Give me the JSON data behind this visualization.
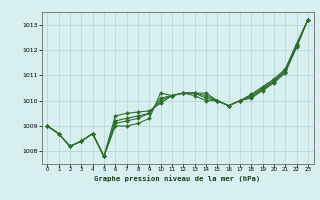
{
  "title": "Graphe pression niveau de la mer (hPa)",
  "bg_color": "#d8eff0",
  "grid_color": "#b0d4d4",
  "line_color": "#2d6e2d",
  "xlim": [
    -0.5,
    23.5
  ],
  "ylim": [
    1007.5,
    1013.5
  ],
  "yticks": [
    1008,
    1009,
    1010,
    1011,
    1012,
    1013
  ],
  "xticks": [
    0,
    1,
    2,
    3,
    4,
    5,
    6,
    7,
    8,
    9,
    10,
    11,
    12,
    13,
    14,
    15,
    16,
    17,
    18,
    19,
    20,
    21,
    22,
    23
  ],
  "series": [
    [
      1009.0,
      1008.7,
      1008.2,
      1008.4,
      1008.7,
      1007.8,
      1009.0,
      1009.0,
      1009.1,
      1009.3,
      1010.3,
      1010.2,
      1010.3,
      1010.3,
      1010.3,
      1010.0,
      1009.8,
      1010.0,
      1010.1,
      1010.4,
      1010.7,
      1011.1,
      1012.1,
      1013.2
    ],
    [
      1009.0,
      1008.7,
      1008.2,
      1008.4,
      1008.7,
      1007.8,
      1009.1,
      1009.2,
      1009.3,
      1009.5,
      1010.1,
      1010.2,
      1010.3,
      1010.3,
      1010.2,
      1010.0,
      1009.8,
      1010.0,
      1010.15,
      1010.45,
      1010.75,
      1011.15,
      1012.15,
      1013.2
    ],
    [
      1009.0,
      1008.7,
      1008.2,
      1008.4,
      1008.7,
      1007.8,
      1009.2,
      1009.3,
      1009.4,
      1009.5,
      1010.0,
      1010.2,
      1010.3,
      1010.3,
      1010.1,
      1010.0,
      1009.8,
      1010.0,
      1010.2,
      1010.5,
      1010.8,
      1011.2,
      1012.2,
      1013.2
    ],
    [
      1009.0,
      1008.7,
      1008.2,
      1008.4,
      1008.7,
      1007.8,
      1009.4,
      1009.5,
      1009.55,
      1009.6,
      1009.9,
      1010.2,
      1010.3,
      1010.2,
      1010.0,
      1010.0,
      1009.8,
      1010.0,
      1010.25,
      1010.55,
      1010.85,
      1011.25,
      1012.25,
      1013.2
    ]
  ]
}
